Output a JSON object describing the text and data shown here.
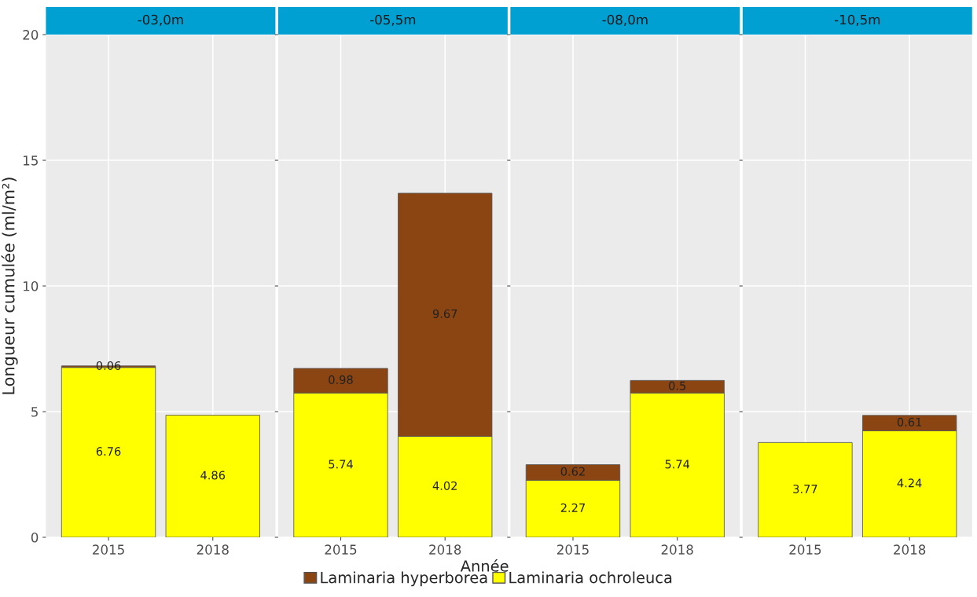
{
  "chart_data": [
    {
      "type": "bar",
      "title": "-03,0m",
      "ylabel": "Longueur cumulée (ml/m²)",
      "categories": [
        "2015",
        "2018"
      ],
      "stacked": true,
      "ylim": [
        0,
        20
      ],
      "yticks": [
        0,
        5,
        10,
        15,
        20
      ],
      "grid": true,
      "legend": "bottom",
      "data_labels": true,
      "series": [
        {
          "name": "Laminaria ochroleuca",
          "color": "#ffff00",
          "values": [
            6.76,
            4.86
          ]
        },
        {
          "name": "Laminaria hyperborea",
          "color": "#8b4513",
          "values": [
            0.06,
            null
          ]
        }
      ]
    },
    {
      "type": "bar",
      "title": "-05,5m",
      "xlabel": "Année",
      "categories": [
        "2015",
        "2018"
      ],
      "stacked": true,
      "ylim": [
        0,
        20
      ],
      "yticks": [
        0,
        5,
        10,
        15,
        20
      ],
      "grid": true,
      "tick_labels": "x",
      "data_labels": true,
      "series": [
        {
          "name": "Laminaria ochroleuca",
          "color": "#ffff00",
          "values": [
            5.74,
            4.02
          ]
        },
        {
          "name": "Laminaria hyperborea",
          "color": "#8b4513",
          "values": [
            0.98,
            9.67
          ]
        }
      ]
    },
    {
      "type": "bar",
      "title": "-08,0m",
      "categories": [
        "2015",
        "2018"
      ],
      "stacked": true,
      "ylim": [
        0,
        20
      ],
      "yticks": [
        0,
        5,
        10,
        15,
        20
      ],
      "grid": true,
      "tick_labels": "x",
      "data_labels": true,
      "series": [
        {
          "name": "Laminaria ochroleuca",
          "color": "#ffff00",
          "values": [
            2.27,
            5.74
          ]
        },
        {
          "name": "Laminaria hyperborea",
          "color": "#8b4513",
          "values": [
            0.62,
            0.5
          ]
        }
      ]
    },
    {
      "type": "bar",
      "title": "-10,5m",
      "categories": [
        "2015",
        "2018"
      ],
      "stacked": true,
      "ylim": [
        0,
        20
      ],
      "yticks": [
        0,
        5,
        10,
        15,
        20
      ],
      "grid": true,
      "tick_labels": "x",
      "data_labels": true,
      "series": [
        {
          "name": "Laminaria ochroleuca",
          "color": "#ffff00",
          "values": [
            3.77,
            4.24
          ]
        },
        {
          "name": "Laminaria hyperborea",
          "color": "#8b4513",
          "values": [
            null,
            0.61
          ]
        }
      ]
    }
  ]
}
